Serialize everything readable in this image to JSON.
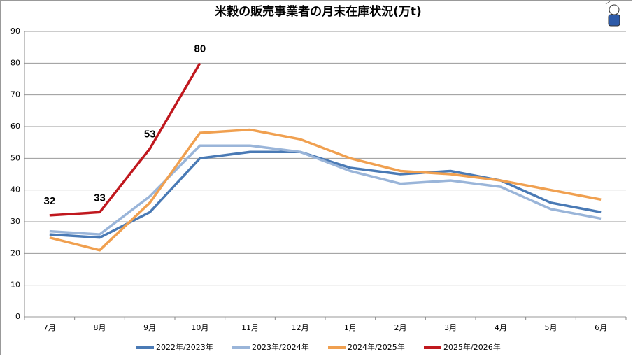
{
  "chart_data": {
    "type": "line",
    "title": "米穀の販売事業者の月末在庫状況(万t)",
    "categories": [
      "7月",
      "8月",
      "9月",
      "10月",
      "11月",
      "12月",
      "1月",
      "2月",
      "3月",
      "4月",
      "5月",
      "6月"
    ],
    "series": [
      {
        "name": "2022年/2023年",
        "color": "#4a7ab5",
        "values": [
          26,
          25,
          33,
          50,
          52,
          52,
          47,
          45,
          46,
          43,
          36,
          33
        ]
      },
      {
        "name": "2023年/2024年",
        "color": "#9ab5d9",
        "values": [
          27,
          26,
          38,
          54,
          54,
          52,
          46,
          42,
          43,
          41,
          34,
          31
        ]
      },
      {
        "name": "2024年/2025年",
        "color": "#f0a050",
        "values": [
          25,
          21,
          36,
          58,
          59,
          56,
          50,
          46,
          45,
          43,
          40,
          37
        ]
      },
      {
        "name": "2025年/2026年",
        "color": "#c0181e",
        "values": [
          32,
          33,
          53,
          80,
          null,
          null,
          null,
          null,
          null,
          null,
          null,
          null
        ],
        "data_labels": true
      }
    ],
    "ylim": [
      0,
      90
    ],
    "yticks": [
      0,
      10,
      20,
      30,
      40,
      50,
      60,
      70,
      80,
      90
    ],
    "grid": true,
    "legend": "bottom"
  }
}
